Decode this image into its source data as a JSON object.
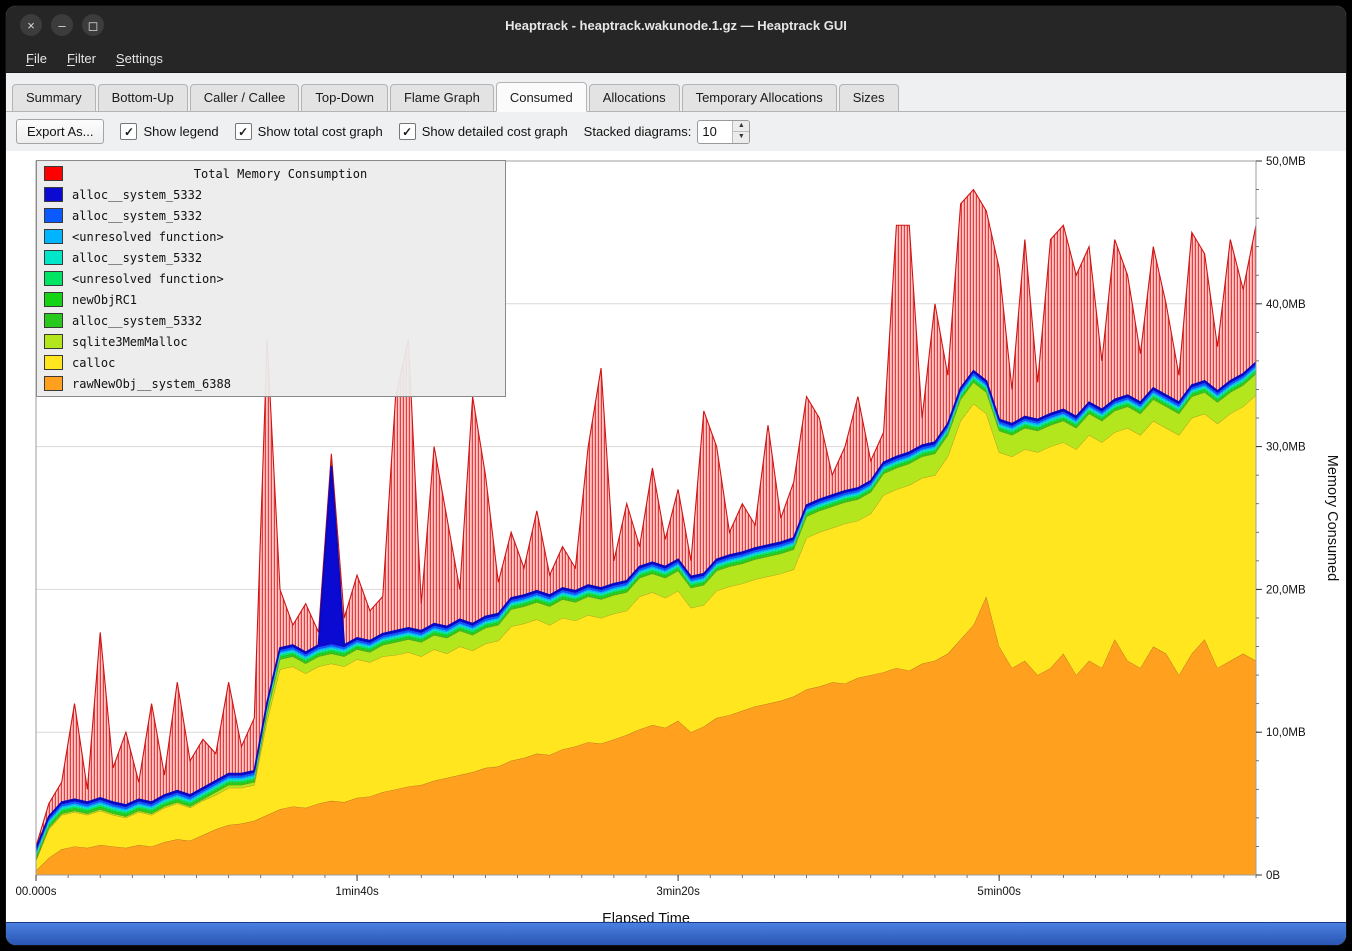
{
  "window": {
    "title": "Heaptrack - heaptrack.wakunode.1.gz — Heaptrack GUI",
    "controls": [
      {
        "name": "close",
        "glyph": "×"
      },
      {
        "name": "minimize",
        "glyph": "–"
      },
      {
        "name": "maximize",
        "glyph": "◻"
      }
    ]
  },
  "menubar": {
    "items": [
      {
        "label": "File",
        "accel": 0
      },
      {
        "label": "Filter",
        "accel": 0
      },
      {
        "label": "Settings",
        "accel": 0
      }
    ]
  },
  "tabs": [
    {
      "label": "Summary",
      "active": false
    },
    {
      "label": "Bottom-Up",
      "active": false
    },
    {
      "label": "Caller / Callee",
      "active": false
    },
    {
      "label": "Top-Down",
      "active": false
    },
    {
      "label": "Flame Graph",
      "active": false
    },
    {
      "label": "Consumed",
      "active": true
    },
    {
      "label": "Allocations",
      "active": false
    },
    {
      "label": "Temporary Allocations",
      "active": false
    },
    {
      "label": "Sizes",
      "active": false
    }
  ],
  "toolbar": {
    "export_label": "Export As...",
    "checkboxes": [
      {
        "label": "Show legend",
        "checked": true
      },
      {
        "label": "Show total cost graph",
        "checked": true
      },
      {
        "label": "Show detailed cost graph",
        "checked": true
      }
    ],
    "stacked_label": "Stacked diagrams:",
    "stacked_value": "10"
  },
  "chart_data": {
    "type": "area",
    "title": "Total Memory Consumption",
    "xlabel": "Elapsed Time",
    "ylabel": "Memory Consumed",
    "xlim": [
      0,
      380
    ],
    "ylim": [
      0,
      50
    ],
    "grid": "horizontal-major",
    "legend_position": "top-left",
    "x_ticks": [
      {
        "t": 0,
        "label": "00.000s"
      },
      {
        "t": 100,
        "label": "1min40s"
      },
      {
        "t": 200,
        "label": "3min20s"
      },
      {
        "t": 300,
        "label": "5min00s"
      }
    ],
    "x_tick_minor": 10,
    "y_ticks": [
      {
        "v": 0,
        "label": "0B"
      },
      {
        "v": 10,
        "label": "10,0MB"
      },
      {
        "v": 20,
        "label": "20,0MB"
      },
      {
        "v": 30,
        "label": "30,0MB"
      },
      {
        "v": 40,
        "label": "40,0MB"
      },
      {
        "v": 50,
        "label": "50,0MB"
      }
    ],
    "y_tick_minor": 2,
    "x": {
      "start": 0,
      "step": 4,
      "count": 96
    },
    "total": {
      "name": "Total Memory Consumption",
      "color": "#ff0000",
      "values": [
        2.0,
        5.0,
        6.5,
        12.0,
        6.0,
        17.0,
        7.5,
        10.0,
        6.5,
        12.0,
        7.0,
        13.5,
        8.0,
        9.5,
        8.5,
        13.5,
        9.0,
        11.0,
        37.5,
        20.0,
        17.5,
        19.0,
        17.0,
        29.5,
        18.0,
        21.0,
        18.5,
        19.5,
        33.5,
        37.5,
        19.0,
        30.0,
        25.0,
        20.0,
        33.5,
        28.0,
        20.5,
        24.0,
        21.5,
        25.5,
        21.0,
        23.0,
        21.5,
        30.0,
        35.5,
        22.0,
        26.0,
        23.0,
        28.5,
        23.5,
        27.0,
        22.0,
        32.5,
        30.0,
        24.0,
        26.0,
        24.5,
        31.5,
        25.0,
        27.5,
        33.5,
        32.0,
        28.0,
        30.0,
        33.5,
        29.0,
        31.0,
        45.5,
        45.5,
        32.0,
        40.0,
        35.0,
        47.0,
        48.0,
        46.5,
        42.5,
        34.0,
        44.5,
        34.5,
        44.5,
        45.5,
        42.0,
        44.0,
        36.0,
        44.5,
        42.0,
        36.5,
        44.0,
        40.0,
        35.0,
        45.0,
        43.5,
        37.0,
        44.5,
        41.0,
        45.5
      ]
    },
    "series": [
      {
        "name": "rawNewObj__system_6388",
        "color": "#ffa01e",
        "values": [
          0.3,
          1.2,
          1.8,
          2.0,
          1.9,
          2.1,
          2.0,
          1.9,
          2.1,
          2.0,
          2.3,
          2.5,
          2.4,
          2.8,
          3.2,
          3.5,
          3.6,
          3.8,
          4.2,
          4.6,
          4.8,
          4.7,
          5.0,
          5.2,
          5.1,
          5.4,
          5.5,
          5.8,
          6.0,
          6.2,
          6.3,
          6.6,
          6.8,
          7.0,
          7.2,
          7.5,
          7.6,
          8.0,
          8.2,
          8.5,
          8.4,
          8.8,
          9.0,
          9.3,
          9.2,
          9.5,
          9.8,
          10.2,
          10.5,
          10.3,
          10.8,
          10.0,
          10.4,
          11.0,
          11.2,
          11.5,
          11.8,
          12.0,
          12.2,
          12.5,
          13.0,
          13.2,
          13.5,
          13.4,
          13.8,
          14.0,
          14.2,
          14.5,
          14.3,
          14.8,
          15.0,
          15.5,
          16.5,
          17.5,
          19.5,
          16.0,
          14.5,
          15.0,
          14.0,
          14.5,
          15.5,
          14.0,
          15.0,
          14.5,
          16.5,
          15.0,
          14.5,
          16.0,
          15.5,
          14.0,
          15.5,
          16.5,
          14.5,
          15.0,
          15.5,
          15.0
        ]
      },
      {
        "name": "calloc",
        "color": "#ffe61e",
        "values": [
          0.7,
          2.0,
          2.4,
          2.4,
          2.3,
          2.4,
          2.2,
          2.1,
          2.3,
          2.2,
          2.4,
          2.5,
          2.3,
          2.4,
          2.4,
          2.6,
          2.5,
          2.5,
          6.6,
          9.8,
          9.8,
          9.4,
          9.6,
          9.6,
          9.5,
          9.7,
          9.4,
          9.5,
          9.4,
          9.4,
          9.0,
          9.2,
          8.7,
          9.0,
          8.5,
          8.7,
          8.8,
          9.4,
          9.4,
          9.4,
          9.1,
          9.2,
          8.8,
          8.9,
          8.8,
          8.8,
          8.7,
          9.3,
          9.3,
          9.1,
          9.1,
          8.7,
          8.5,
          8.9,
          9.0,
          8.9,
          8.9,
          8.9,
          8.9,
          8.9,
          10.6,
          10.8,
          10.8,
          11.2,
          11.0,
          11.3,
          12.4,
          12.5,
          13.0,
          13.0,
          13.0,
          13.8,
          15.3,
          15.5,
          12.8,
          13.6,
          14.8,
          14.8,
          15.6,
          15.5,
          14.8,
          15.8,
          15.8,
          15.8,
          14.5,
          16.3,
          16.3,
          15.8,
          15.8,
          16.8,
          16.5,
          15.8,
          17.1,
          17.3,
          17.3,
          18.6
        ]
      },
      {
        "name": "sqlite3MemMalloc",
        "color": "#b4e61e",
        "values": [
          0.05,
          0.1,
          0.1,
          0.1,
          0.1,
          0.1,
          0.1,
          0.1,
          0.1,
          0.1,
          0.1,
          0.1,
          0.1,
          0.1,
          0.2,
          0.2,
          0.2,
          0.2,
          0.5,
          0.7,
          0.7,
          0.7,
          0.7,
          0.7,
          0.7,
          0.7,
          0.7,
          0.8,
          0.9,
          0.9,
          1.0,
          1.0,
          1.1,
          1.1,
          1.1,
          1.1,
          1.1,
          1.2,
          1.2,
          1.2,
          1.3,
          1.3,
          1.3,
          1.3,
          1.3,
          1.3,
          1.3,
          1.3,
          1.3,
          1.4,
          1.4,
          1.4,
          1.4,
          1.4,
          1.4,
          1.4,
          1.4,
          1.4,
          1.4,
          1.4,
          1.5,
          1.5,
          1.5,
          1.5,
          1.5,
          1.5,
          1.5,
          1.5,
          1.5,
          1.5,
          1.5,
          1.5,
          1.5,
          1.5,
          1.5,
          1.5,
          1.5,
          1.5,
          1.5,
          1.5,
          1.5,
          1.5,
          1.5,
          1.5,
          1.5,
          1.5,
          1.5,
          1.5,
          1.5,
          1.5,
          1.5,
          1.5,
          1.5,
          1.5,
          1.5,
          1.5
        ]
      },
      {
        "name": "alloc__system_5332",
        "color": "#28c81e",
        "const": 0.1
      },
      {
        "name": "newObjRC1",
        "color": "#14d214",
        "const": 0.1
      },
      {
        "name": "<unresolved function>",
        "color": "#00e664",
        "const": 0.1
      },
      {
        "name": "alloc__system_5332",
        "color": "#00e6c8",
        "const": 0.1
      },
      {
        "name": "<unresolved function>",
        "color": "#00b4ff",
        "const": 0.1
      },
      {
        "name": "alloc__system_5332",
        "color": "#0a5aff",
        "const": 0.15
      },
      {
        "name": "alloc__system_5332",
        "color": "#0a0ad2",
        "const": 0.15,
        "overrides": {
          "23": 12.5
        }
      }
    ]
  }
}
